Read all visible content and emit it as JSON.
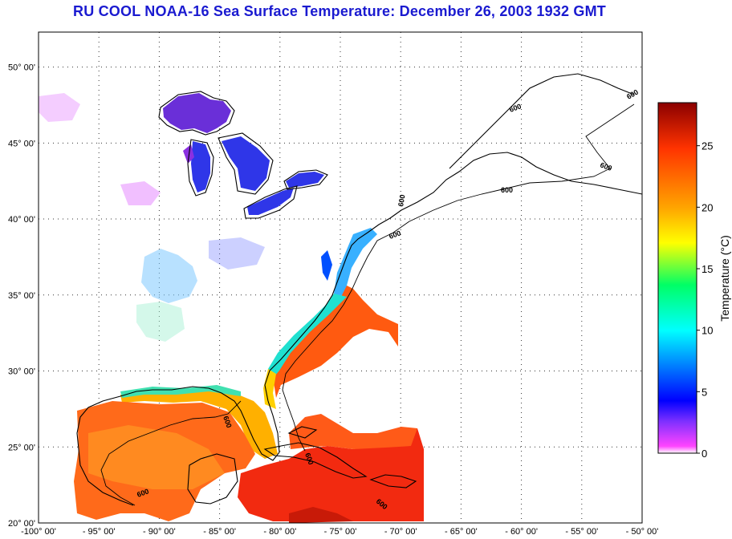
{
  "title": "RU COOL  NOAA-16  Sea Surface Temperature:  December 26, 2003 1932 GMT",
  "map": {
    "lat_labels": [
      "50° 00'",
      "45° 00'",
      "40° 00'",
      "35° 00'",
      "30° 00'",
      "25° 00'",
      "20° 00'"
    ],
    "lon_labels": [
      "-100° 00'",
      "- 95° 00'",
      "- 90° 00'",
      "- 85° 00'",
      "- 80° 00'",
      "- 75° 00'",
      "- 70° 00'",
      "- 65° 00'",
      "- 60° 00'",
      "- 55° 00'",
      "- 50° 00'"
    ],
    "isobath_label": "600",
    "lon_range": [
      -100,
      -50
    ],
    "lat_range": [
      20,
      52.3
    ]
  },
  "colorbar": {
    "label": "Temperature (°C)",
    "ticks": [
      "25",
      "20",
      "15",
      "10",
      "5",
      "0"
    ],
    "colors": {
      "max": "#8b0000",
      "c25": "#ff3300",
      "c20": "#ffa500",
      "c17": "#ffff00",
      "c14": "#00ff66",
      "c10": "#00ffff",
      "c5": "#0000ff",
      "c3": "#7f30ff",
      "c0": "#ff44ff"
    }
  },
  "regions_colors": {
    "great_lakes": "#2f36e8",
    "lake_superior": "#6a2fd8",
    "gulf": "#ff6a1a",
    "caribbean": "#f22a10",
    "gulf_stream": "#ff5a10",
    "shelf_north": "#38b0ff",
    "shelf_mid": "#20e0d0",
    "shelf_south": "#ffd000",
    "inland_scatter": "#9ad0ff",
    "inland_magenta": "#e070ff"
  }
}
